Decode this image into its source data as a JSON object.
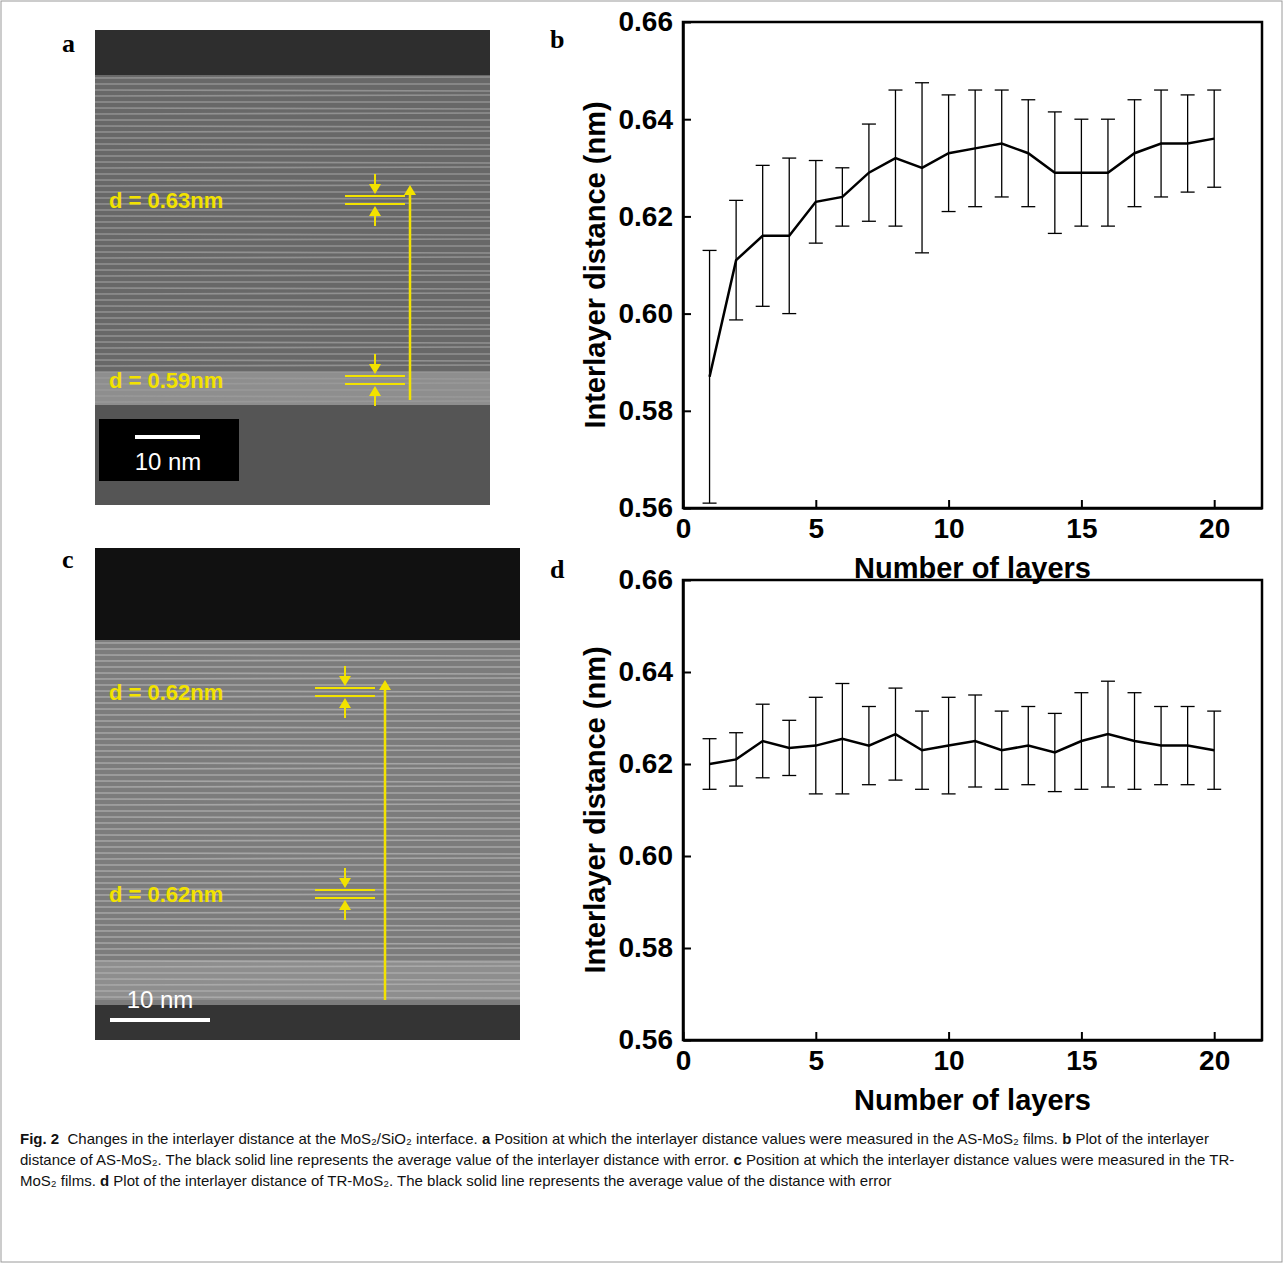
{
  "figure": {
    "images": [
      {
        "label": "a",
        "annotations": [
          "d = 0.63nm",
          "d = 0.59nm"
        ],
        "scale_bar": "10 nm"
      },
      {
        "label": "c",
        "annotations": [
          "d = 0.62nm",
          "d = 0.62nm"
        ],
        "scale_bar": "10 nm"
      }
    ],
    "caption": {
      "label": "Fig. 2",
      "text": "Changes in the interlayer distance at the MoS₂/SiO₂ interface.",
      "parts": [
        {
          "letter": "a",
          "text": "Position at which the interlayer distance values were measured in the AS-MoS₂ films."
        },
        {
          "letter": "b",
          "text": "Plot of the interlayer distance of AS-MoS₂. The black solid line represents the average value of the interlayer distance with error."
        },
        {
          "letter": "c",
          "text": "Position at which the interlayer distance values were measured in the TR-MoS₂ films."
        },
        {
          "letter": "d",
          "text": "Plot of the interlayer distance of TR-MoS₂. The black solid line represents the average value of the distance with error"
        }
      ]
    }
  },
  "chart_data": [
    {
      "type": "line",
      "label": "b",
      "x_label": "Number of layers",
      "y_label": "Interlayer distance (nm)",
      "x": [
        1,
        2,
        3,
        4,
        5,
        6,
        7,
        8,
        9,
        10,
        11,
        12,
        13,
        14,
        15,
        16,
        17,
        18,
        19,
        20
      ],
      "series": [
        {
          "color": "#000000",
          "values": [
            0.587,
            0.611,
            0.616,
            0.616,
            0.623,
            0.624,
            0.629,
            0.632,
            0.63,
            0.633,
            0.634,
            0.635,
            0.633,
            0.629,
            0.629,
            0.629,
            0.633,
            0.635,
            0.635,
            0.636
          ],
          "errors": [
            0.026,
            0.0123,
            0.0145,
            0.016,
            0.0085,
            0.006,
            0.01,
            0.014,
            0.0175,
            0.012,
            0.012,
            0.011,
            0.011,
            0.0125,
            0.011,
            0.011,
            0.011,
            0.011,
            0.01,
            0.01
          ]
        }
      ],
      "xlim": [
        0,
        21.8
      ],
      "xticks": [
        0,
        5,
        10,
        15,
        20
      ],
      "ylim": [
        0.56,
        0.66
      ],
      "yticks": [
        0.56,
        0.58,
        {
          "value": 0.6,
          "label": "0.60"
        },
        0.62,
        0.64,
        0.66
      ]
    },
    {
      "type": "line",
      "label": "d",
      "x_label": "Number of layers",
      "y_label": "Interlayer distance (nm)",
      "x": [
        1,
        2,
        3,
        4,
        5,
        6,
        7,
        8,
        9,
        10,
        11,
        12,
        13,
        14,
        15,
        16,
        17,
        18,
        19,
        20
      ],
      "series": [
        {
          "color": "#000000",
          "values": [
            0.62,
            0.621,
            0.625,
            0.6235,
            0.624,
            0.6255,
            0.624,
            0.6265,
            0.623,
            0.624,
            0.625,
            0.623,
            0.624,
            0.6225,
            0.625,
            0.6265,
            0.625,
            0.624,
            0.624,
            0.623
          ],
          "errors": [
            0.0055,
            0.0058,
            0.008,
            0.006,
            0.0105,
            0.012,
            0.0085,
            0.01,
            0.0085,
            0.0105,
            0.01,
            0.0085,
            0.0085,
            0.0085,
            0.0105,
            0.0115,
            0.0105,
            0.0085,
            0.0085,
            0.0085
          ]
        }
      ],
      "xlim": [
        0,
        21.8
      ],
      "xticks": [
        0,
        5,
        10,
        15,
        20
      ],
      "ylim": [
        0.56,
        0.66
      ],
      "yticks": [
        0.56,
        0.58,
        {
          "value": 0.6,
          "label": "0.60"
        },
        0.62,
        0.64,
        0.66
      ]
    }
  ]
}
